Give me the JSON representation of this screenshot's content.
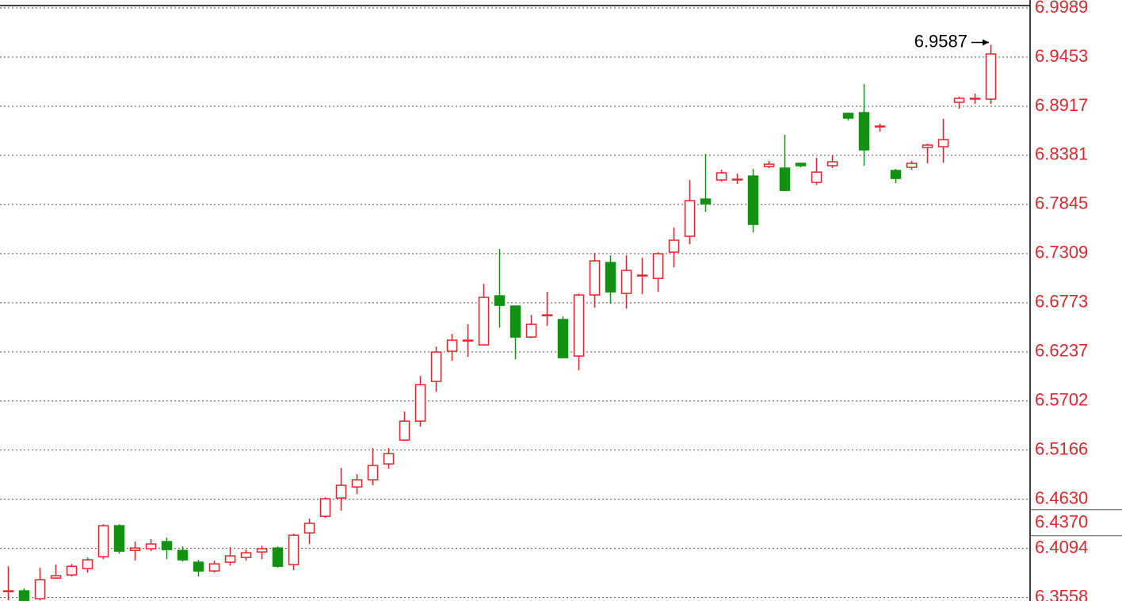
{
  "chart_data": {
    "type": "candlestick",
    "up_color": "#e0262e",
    "down_color": "#149014",
    "grid": true,
    "ylim": [
      6.352,
      7.0015
    ],
    "yticks": [
      6.9989,
      6.9453,
      6.8917,
      6.8381,
      6.7845,
      6.7309,
      6.6773,
      6.6237,
      6.5702,
      6.5166,
      {
        "value": 6.463,
        "label": "6.4630"
      },
      6.4094,
      6.3558
    ],
    "high_annotation": {
      "value": 6.9587,
      "label": "6.9587"
    },
    "axis_marker": {
      "value": 6.437,
      "label": "6.4370"
    },
    "open": [
      6.3631,
      6.3631,
      6.3545,
      6.377,
      6.3804,
      6.3873,
      6.4003,
      6.4341,
      6.4072,
      6.409,
      6.4168,
      6.4072,
      6.3943,
      6.3848,
      6.3943,
      6.3995,
      6.4055,
      6.4098,
      6.3917,
      6.4263,
      6.4444,
      6.4643,
      6.4764,
      6.4842,
      6.5015,
      6.5275,
      6.5482,
      6.5915,
      6.6244,
      6.6365,
      6.6313,
      6.6849,
      6.6737,
      6.6399,
      6.6641,
      6.659,
      6.6192,
      6.6858,
      6.7212,
      6.6875,
      6.7074,
      6.7039,
      6.7325,
      6.7498,
      6.7904,
      6.8112,
      6.8121,
      6.8155,
      6.8259,
      6.8242,
      6.8294,
      6.8086,
      6.8268,
      6.8839,
      6.8847,
      6.87,
      6.8216,
      6.825,
      6.8467,
      6.8475,
      6.896,
      6.9003,
      6.8994
    ],
    "high": [
      6.3899,
      6.3657,
      6.3882,
      6.3917,
      6.3925,
      6.3995,
      6.4358,
      6.4358,
      6.4168,
      6.4194,
      6.4211,
      6.4116,
      6.3969,
      6.396,
      6.4107,
      6.4081,
      6.4124,
      6.4116,
      6.4254,
      6.4418,
      6.4652,
      6.4972,
      6.4903,
      6.5188,
      6.5188,
      6.5586,
      6.5975,
      6.6295,
      6.6434,
      6.6538,
      6.6979,
      6.7359,
      6.6745,
      6.6641,
      6.6892,
      6.6624,
      6.6875,
      6.7316,
      6.729,
      6.729,
      6.7264,
      6.7325,
      6.7593,
      6.8112,
      6.8397,
      6.8224,
      6.8181,
      6.8233,
      6.832,
      6.8605,
      6.8302,
      6.8354,
      6.838,
      6.8847,
      6.9159,
      6.8726,
      6.8233,
      6.832,
      6.851,
      6.8778,
      6.902,
      6.9055,
      6.9587
    ],
    "low": [
      6.3527,
      6.3527,
      6.3527,
      6.3761,
      6.3787,
      6.383,
      6.3977,
      6.4038,
      6.396,
      6.4064,
      6.3977,
      6.3951,
      6.3787,
      6.383,
      6.3908,
      6.396,
      6.3977,
      6.3882,
      6.3856,
      6.4142,
      6.4427,
      6.4505,
      6.4687,
      6.4782,
      6.4963,
      6.5275,
      6.5422,
      6.5802,
      6.614,
      6.6183,
      6.6313,
      6.6503,
      6.6157,
      6.6391,
      6.652,
      6.6166,
      6.6036,
      6.6719,
      6.6763,
      6.6711,
      6.6866,
      6.6892,
      6.716,
      6.7411,
      6.7766,
      6.8095,
      6.8069,
      6.7541,
      6.8242,
      6.7991,
      6.825,
      6.806,
      6.8242,
      6.8761,
      6.8268,
      6.864,
      6.8077,
      6.8224,
      6.8294,
      6.8302,
      6.889,
      6.8942,
      6.8942
    ],
    "close": [
      6.3631,
      6.3527,
      6.3752,
      6.3796,
      6.3899,
      6.3969,
      6.4341,
      6.4064,
      6.4098,
      6.4142,
      6.4081,
      6.3969,
      6.3848,
      6.3925,
      6.4012,
      6.4046,
      6.409,
      6.3899,
      6.4237,
      6.4367,
      6.4635,
      6.4782,
      6.4842,
      6.4998,
      6.5128,
      6.5482,
      6.588,
      6.6235,
      6.6365,
      6.6365,
      6.6832,
      6.6745,
      6.6399,
      6.6538,
      6.6641,
      6.6174,
      6.6858,
      6.723,
      6.6892,
      6.7126,
      6.7074,
      6.7308,
      6.7455,
      6.7887,
      6.7852,
      6.819,
      6.8121,
      6.7628,
      6.8285,
      6.7999,
      6.8268,
      6.8198,
      6.8311,
      6.8787,
      6.8441,
      6.87,
      6.8129,
      6.8294,
      6.8493,
      6.8553,
      6.9003,
      6.9003,
      6.9487
    ]
  }
}
